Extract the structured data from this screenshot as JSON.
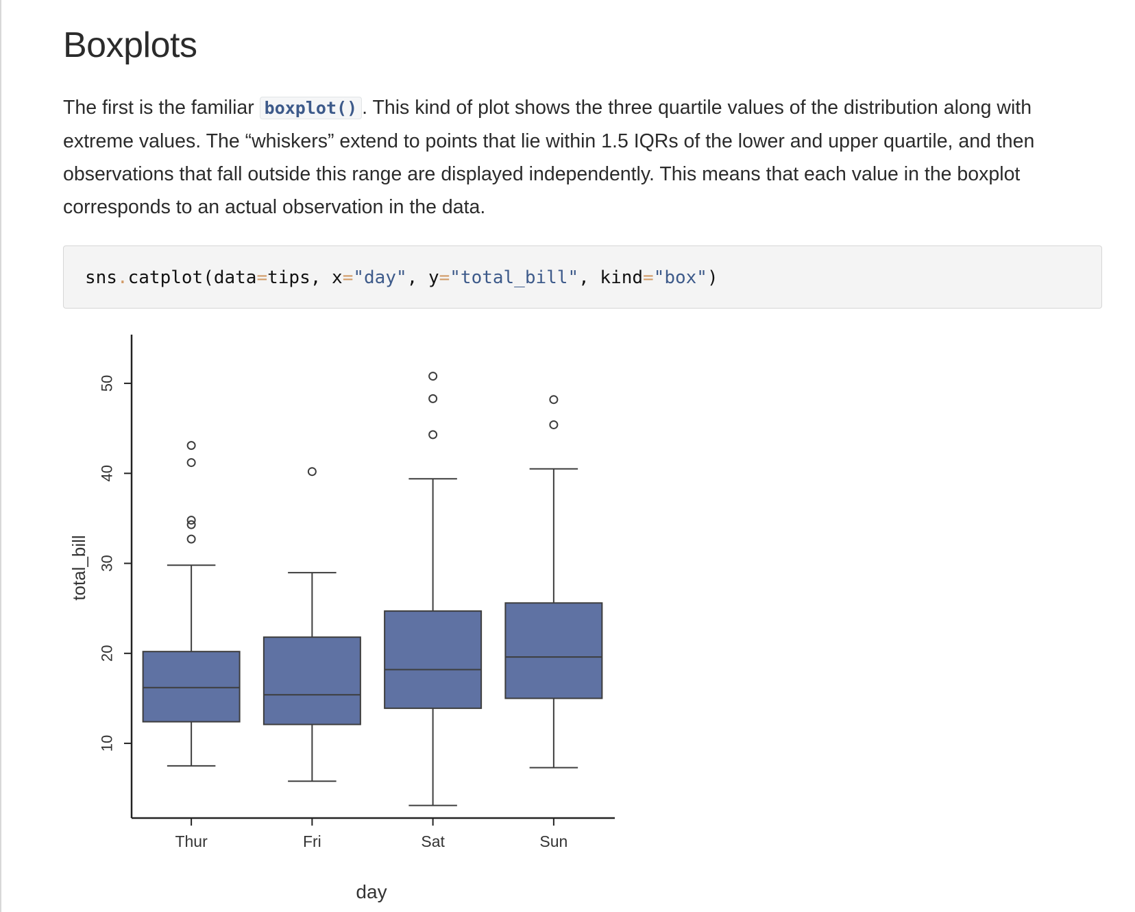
{
  "page": {
    "title": "Boxplots",
    "paragraph": {
      "before_code": "The first is the familiar ",
      "inline_code": "boxplot()",
      "after_code": ". This kind of plot shows the three quartile values of the distribution along with extreme values. The “whiskers” extend to points that lie within 1.5 IQRs of the lower and upper quartile, and then observations that fall outside this range are displayed independently. This means that each value in the boxplot corresponds to an actual observation in the data."
    },
    "code": {
      "t1": "sns",
      "t2": ".",
      "t3": "catplot(data",
      "t4": "=",
      "t5": "tips, x",
      "t6": "=",
      "t7": "\"day\"",
      "t8": ", y",
      "t9": "=",
      "t10": "\"total_bill\"",
      "t11": ", kind",
      "t12": "=",
      "t13": "\"box\"",
      "t14": ")"
    }
  },
  "chart_data": {
    "type": "box",
    "categories": [
      "Thur",
      "Fri",
      "Sat",
      "Sun"
    ],
    "xlabel": "day",
    "ylabel": "total_bill",
    "yticks": [
      10,
      20,
      30,
      40,
      50
    ],
    "ylim": [
      1.7,
      54.5
    ],
    "box_color": "#5f72a3",
    "edge_color": "#3d3d3d",
    "boxes": [
      {
        "category": "Thur",
        "whisker_low": 7.5,
        "q1": 12.4,
        "median": 16.2,
        "q3": 20.2,
        "whisker_high": 29.8,
        "outliers": [
          32.7,
          34.3,
          34.8,
          41.2,
          43.1
        ]
      },
      {
        "category": "Fri",
        "whisker_low": 5.8,
        "q1": 12.1,
        "median": 15.4,
        "q3": 21.8,
        "whisker_high": 28.97,
        "outliers": [
          40.2
        ]
      },
      {
        "category": "Sat",
        "whisker_low": 3.1,
        "q1": 13.9,
        "median": 18.2,
        "q3": 24.7,
        "whisker_high": 39.4,
        "outliers": [
          44.3,
          48.3,
          50.8
        ]
      },
      {
        "category": "Sun",
        "whisker_low": 7.3,
        "q1": 15.0,
        "median": 19.6,
        "q3": 25.6,
        "whisker_high": 40.5,
        "outliers": [
          45.4,
          48.2
        ]
      }
    ]
  }
}
